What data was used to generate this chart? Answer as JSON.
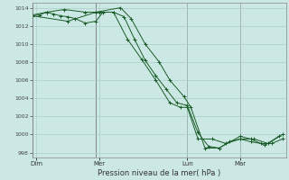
{
  "xlabel": "Pression niveau de la mer( hPa )",
  "background_color": "#cce8e4",
  "grid_color": "#aacec8",
  "line_color": "#1a5c28",
  "ylim": [
    997.5,
    1014.5
  ],
  "yticks": [
    998,
    1000,
    1002,
    1004,
    1006,
    1008,
    1010,
    1012,
    1014
  ],
  "day_labels": [
    "Dim",
    "Mer",
    "Lun",
    "Mar"
  ],
  "day_positions": [
    0.5,
    9.5,
    22.0,
    29.5
  ],
  "vline_positions": [
    0.0,
    9.0,
    22.0,
    29.5
  ],
  "xlim": [
    0,
    36
  ],
  "series1_x": [
    0.0,
    1.0,
    2.0,
    3.0,
    4.0,
    5.0,
    6.0,
    7.5,
    9.0,
    10.0,
    11.5,
    13.0,
    14.5,
    16.0,
    17.5,
    19.0,
    20.5,
    22.0,
    23.5,
    25.0,
    26.5,
    28.0,
    29.5,
    31.0,
    32.5,
    34.0,
    35.5
  ],
  "series1_y": [
    1013.1,
    1013.2,
    1013.5,
    1013.3,
    1013.1,
    1013.0,
    1012.8,
    1012.3,
    1012.5,
    1013.5,
    1013.5,
    1013.0,
    1010.5,
    1008.2,
    1006.5,
    1005.0,
    1003.5,
    1003.2,
    1000.2,
    998.7,
    998.5,
    999.2,
    999.5,
    999.2,
    999.0,
    999.0,
    999.5
  ],
  "series2_x": [
    0.0,
    2.0,
    4.5,
    7.5,
    9.5,
    11.5,
    13.5,
    15.5,
    17.5,
    19.5,
    21.0,
    22.0,
    23.5,
    25.5,
    27.5,
    29.5,
    31.5,
    33.5,
    35.5
  ],
  "series2_y": [
    1013.2,
    1013.5,
    1013.8,
    1013.5,
    1013.5,
    1013.5,
    1010.5,
    1008.3,
    1006.0,
    1003.5,
    1003.0,
    1003.0,
    999.5,
    999.5,
    999.0,
    999.5,
    999.5,
    999.0,
    1000.0
  ],
  "series3_x": [
    0.0,
    5.0,
    9.0,
    12.5,
    14.0,
    16.0,
    18.0,
    19.5,
    21.5,
    22.5,
    24.5,
    26.5,
    29.5,
    31.0,
    33.0,
    35.0
  ],
  "series3_y": [
    1013.1,
    1012.5,
    1013.5,
    1014.0,
    1012.8,
    1010.0,
    1008.0,
    1006.0,
    1004.2,
    1003.0,
    998.5,
    998.5,
    999.8,
    999.5,
    998.8,
    999.8
  ]
}
